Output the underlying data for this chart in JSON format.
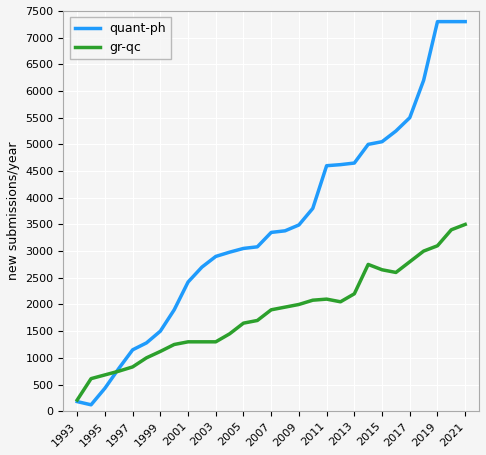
{
  "ylabel": "new submissions/year",
  "xlim": [
    1992,
    2022
  ],
  "ylim": [
    0,
    7500
  ],
  "yticks": [
    0,
    500,
    1000,
    1500,
    2000,
    2500,
    3000,
    3500,
    4000,
    4500,
    5000,
    5500,
    6000,
    6500,
    7000,
    7500
  ],
  "xtick_years": [
    1993,
    1995,
    1997,
    1999,
    2001,
    2003,
    2005,
    2007,
    2009,
    2011,
    2013,
    2015,
    2017,
    2019,
    2021
  ],
  "quant_ph": {
    "label": "quant-ph",
    "color": "#1f9bfc",
    "years": [
      1993,
      1994,
      1995,
      1996,
      1997,
      1998,
      1999,
      2000,
      2001,
      2002,
      2003,
      2004,
      2005,
      2006,
      2007,
      2008,
      2009,
      2010,
      2011,
      2012,
      2013,
      2014,
      2015,
      2016,
      2017,
      2018,
      2019,
      2020,
      2021
    ],
    "values": [
      180,
      120,
      430,
      800,
      1150,
      1280,
      1500,
      1900,
      2420,
      2700,
      2900,
      2980,
      3050,
      3080,
      3350,
      3380,
      3490,
      3800,
      4600,
      4620,
      4650,
      5000,
      5050,
      5250,
      5500,
      6200,
      7300,
      7300,
      7300
    ]
  },
  "gr_qc": {
    "label": "gr-qc",
    "color": "#2ca02c",
    "years": [
      1993,
      1994,
      1995,
      1996,
      1997,
      1998,
      1999,
      2000,
      2001,
      2002,
      2003,
      2004,
      2005,
      2006,
      2007,
      2008,
      2009,
      2010,
      2011,
      2012,
      2013,
      2014,
      2015,
      2016,
      2017,
      2018,
      2019,
      2020,
      2021
    ],
    "values": [
      210,
      610,
      680,
      750,
      830,
      1000,
      1120,
      1250,
      1300,
      1300,
      1300,
      1450,
      1650,
      1700,
      1900,
      1950,
      2000,
      2080,
      2100,
      2050,
      2200,
      2750,
      2650,
      2600,
      2800,
      3000,
      3100,
      3400,
      3500
    ]
  },
  "background_color": "#f5f5f5",
  "grid_color": "white",
  "line_width": 2.5
}
